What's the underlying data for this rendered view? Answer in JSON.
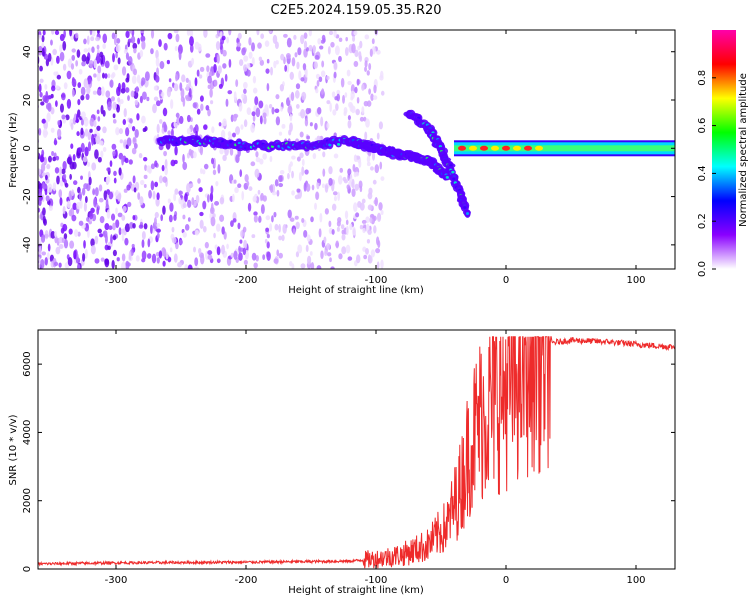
{
  "title": "C2E5.2024.159.05.35.R20",
  "chart_data": [
    {
      "type": "heatmap",
      "xlabel": "Height of straight line (km)",
      "ylabel": "Frequency (Hz)",
      "xlim": [
        -360,
        130
      ],
      "ylim": [
        -50,
        49
      ],
      "xticks": [
        -300,
        -200,
        -100,
        0,
        100
      ],
      "yticks": [
        -40,
        -20,
        0,
        20,
        40
      ],
      "colorbar": {
        "label": "Normalized spectral amplitude",
        "range": [
          0,
          1
        ],
        "ticks": [
          "0.0",
          "0.2",
          "0.4",
          "0.6",
          "0.8"
        ],
        "colors": [
          "#ffffff",
          "#8a00ff",
          "#0000ff",
          "#00ffff",
          "#00ff00",
          "#ffff00",
          "#ff0000",
          "#ff00aa"
        ]
      },
      "features": [
        {
          "name": "noise region",
          "x_range": [
            -360,
            -110
          ],
          "freq_range": [
            -50,
            49
          ]
        },
        {
          "name": "main echo trace",
          "points": [
            [
              -265,
              3
            ],
            [
              -230,
              3
            ],
            [
              -200,
              1
            ],
            [
              -160,
              1
            ],
            [
              -120,
              3
            ],
            [
              -100,
              0
            ],
            [
              -80,
              -3
            ],
            [
              -60,
              -5
            ],
            [
              -45,
              -12
            ]
          ]
        },
        {
          "name": "upper branch",
          "points": [
            [
              -75,
              15
            ],
            [
              -60,
              8
            ],
            [
              -50,
              0
            ],
            [
              -40,
              -12
            ],
            [
              -30,
              -27
            ]
          ]
        },
        {
          "name": "steady band",
          "x_range": [
            -40,
            130
          ],
          "freq": 0
        }
      ]
    },
    {
      "type": "line",
      "xlabel": "Height of straight line (km)",
      "ylabel": "SNR (10 * v/v)",
      "xlim": [
        -360,
        130
      ],
      "ylim": [
        0,
        7000
      ],
      "xticks": [
        -300,
        -200,
        -100,
        0,
        100
      ],
      "yticks": [
        0,
        2000,
        4000,
        6000
      ],
      "series": [
        {
          "name": "SNR",
          "color": "#ee2b2b",
          "x": [
            -360,
            -300,
            -200,
            -120,
            -100,
            -80,
            -60,
            -45,
            -35,
            -28,
            -20,
            -10,
            0,
            10,
            20,
            30,
            50,
            80,
            110,
            130
          ],
          "y": [
            150,
            180,
            200,
            230,
            300,
            420,
            700,
            1300,
            2400,
            3600,
            4400,
            4900,
            5300,
            5800,
            6300,
            6600,
            6700,
            6650,
            6550,
            6500
          ]
        }
      ]
    }
  ]
}
